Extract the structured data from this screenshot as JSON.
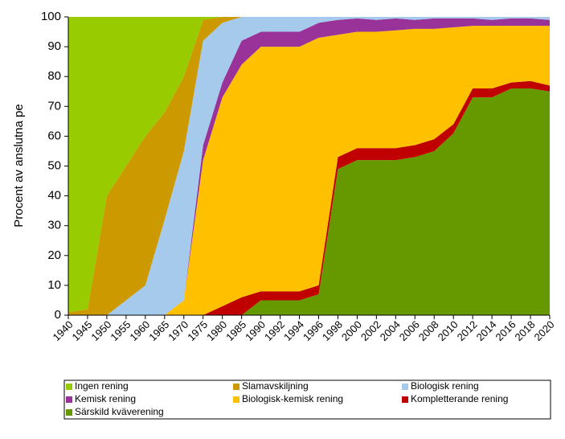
{
  "chart_data": {
    "type": "stacked-area",
    "y_label": "Procent av anslutna pe",
    "categories": [
      "1940",
      "1945",
      "1950",
      "1955",
      "1960",
      "1965",
      "1970",
      "1975",
      "1980",
      "1985",
      "1990",
      "1992",
      "1994",
      "1996",
      "1998",
      "2000",
      "2002",
      "2004",
      "2006",
      "2008",
      "2010",
      "2012",
      "2014",
      "2016",
      "2018",
      "2020"
    ],
    "ylim": [
      0,
      100
    ],
    "yticks": [
      0,
      10,
      20,
      30,
      40,
      50,
      60,
      70,
      80,
      90,
      100
    ],
    "series": [
      {
        "name": "Ingen rening",
        "color": "#99cc00",
        "values": [
          99,
          98,
          60,
          50,
          40,
          32,
          20,
          1,
          0,
          0,
          0,
          0,
          0,
          0,
          0,
          0,
          0,
          0,
          0,
          0,
          0,
          0,
          0,
          0,
          0,
          0
        ]
      },
      {
        "name": "Slamavskiljning",
        "color": "#cc9900",
        "values": [
          1,
          2,
          40,
          45,
          50,
          36,
          25,
          7,
          2,
          0,
          0,
          0,
          0,
          0,
          0,
          0,
          0,
          0,
          0,
          0,
          0,
          0,
          0,
          0,
          0,
          0
        ]
      },
      {
        "name": "Biologisk rening",
        "color": "#a6caec",
        "values": [
          0,
          0,
          0,
          5,
          10,
          32,
          50,
          35,
          20,
          8,
          5,
          5,
          5,
          2,
          1,
          0.5,
          1,
          0.5,
          1,
          0.5,
          0.5,
          0.5,
          1,
          0.5,
          0.5,
          1
        ]
      },
      {
        "name": "Kemisk rening",
        "color": "#993399",
        "values": [
          0,
          0,
          0,
          0,
          0,
          0,
          0,
          5,
          5,
          8,
          5,
          5,
          5,
          5,
          5,
          4.5,
          4,
          4,
          3,
          3.5,
          3,
          2.5,
          2,
          2.5,
          2.5,
          2
        ]
      },
      {
        "name": "Biologisk-kemisk rening",
        "color": "#ffc000",
        "values": [
          0,
          0,
          0,
          0,
          0,
          0,
          5,
          52,
          70,
          78,
          82,
          82,
          82,
          83,
          41,
          39,
          39,
          39.5,
          39,
          37,
          32.5,
          21,
          21,
          19,
          18.5,
          20
        ]
      },
      {
        "name": "Kompletterande rening",
        "color": "#c00000",
        "values": [
          0,
          0,
          0,
          0,
          0,
          0,
          0,
          0,
          3,
          6,
          3,
          3,
          3,
          3,
          4,
          4,
          4,
          4,
          4,
          4,
          3,
          3,
          3,
          2,
          2.5,
          2
        ]
      },
      {
        "name": "Särskild kväverening",
        "color": "#669900",
        "values": [
          0,
          0,
          0,
          0,
          0,
          0,
          0,
          0,
          0,
          0,
          5,
          5,
          5,
          7,
          49,
          52,
          52,
          52,
          53,
          55,
          61,
          73,
          73,
          76,
          76,
          75
        ]
      }
    ]
  }
}
